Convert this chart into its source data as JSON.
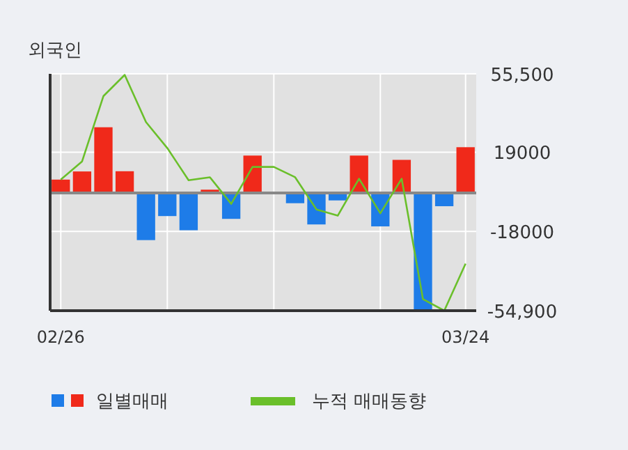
{
  "chart_data": {
    "type": "bar",
    "title": "외국인",
    "categories": [
      "02/26",
      null,
      null,
      null,
      null,
      null,
      null,
      null,
      null,
      null,
      null,
      null,
      null,
      null,
      null,
      null,
      null,
      null,
      null,
      "03/24"
    ],
    "series": [
      {
        "name": "일별매매",
        "colors": [
          "#f0291a",
          "#f0291a",
          "#f0291a",
          "#f0291a",
          "#1e7ce8",
          "#1e7ce8",
          "#1e7ce8",
          "#f0291a",
          "#1e7ce8",
          "#f0291a",
          "#f0291a",
          "#1e7ce8",
          "#1e7ce8",
          "#1e7ce8",
          "#f0291a",
          "#1e7ce8",
          "#f0291a",
          "#1e7ce8",
          "#1e7ce8",
          "#f0291a"
        ],
        "values": [
          6200,
          10000,
          30600,
          10100,
          -22000,
          -10800,
          -17400,
          1500,
          -12100,
          17400,
          null,
          -4800,
          -14700,
          -3500,
          17400,
          -15600,
          15400,
          -54900,
          -6200,
          21300
        ]
      },
      {
        "name": "누적 매매동향",
        "type": "line",
        "color": "#6abf2a",
        "values": [
          6200,
          14700,
          45100,
          55000,
          33000,
          20900,
          5900,
          7300,
          -5100,
          12100,
          12100,
          7300,
          -7700,
          -10600,
          6600,
          -9500,
          6600,
          -49500,
          -54900,
          -33000
        ]
      }
    ],
    "ylim": [
      -54900,
      55500
    ],
    "yticks": [
      {
        "value": 55500,
        "label": "55,500"
      },
      19000,
      -18000,
      {
        "value": -54900,
        "label": "-54,900"
      }
    ],
    "grid": true,
    "legend": "bottom"
  }
}
